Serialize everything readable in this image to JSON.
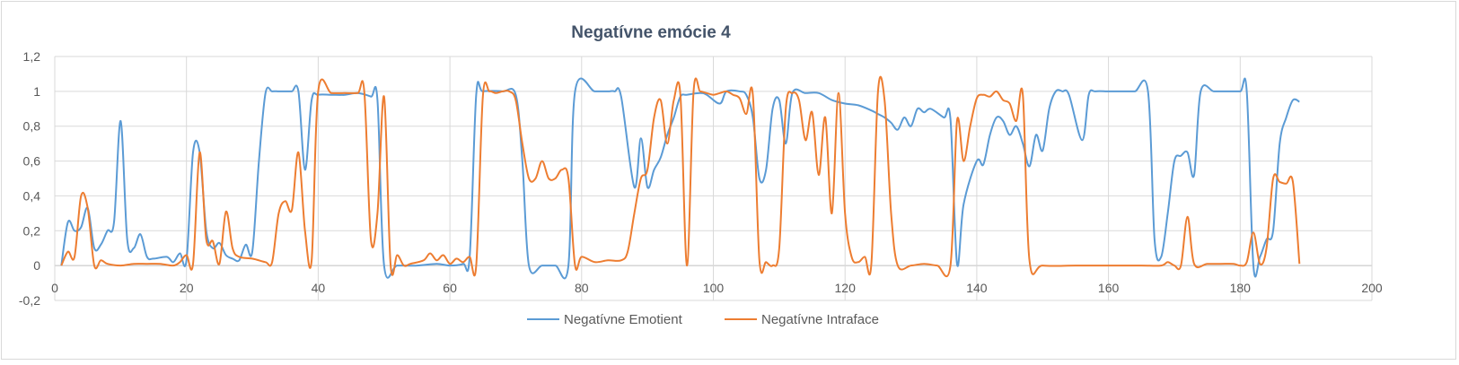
{
  "chart_data": {
    "type": "line",
    "title": "Negatívne emócie 4",
    "xlim": [
      0,
      200
    ],
    "ylim": [
      -0.2,
      1.2
    ],
    "x_ticks": [
      0,
      20,
      40,
      60,
      80,
      100,
      120,
      140,
      160,
      180,
      200
    ],
    "x_tick_labels": [
      "0",
      "20",
      "40",
      "60",
      "80",
      "100",
      "120",
      "140",
      "160",
      "180",
      "200"
    ],
    "y_ticks": [
      -0.2,
      0,
      0.2,
      0.4,
      0.6,
      0.8,
      1,
      1.2
    ],
    "y_tick_labels": [
      "-0,2",
      "0",
      "0,2",
      "0,4",
      "0,6",
      "0,8",
      "1",
      "1,2"
    ],
    "grid": true,
    "legend_position": "bottom",
    "series": [
      {
        "name": "Negatívne Emotient",
        "color": "#5b9bd5",
        "points": [
          [
            1,
            0
          ],
          [
            2,
            0.25
          ],
          [
            3,
            0.2
          ],
          [
            4,
            0.22
          ],
          [
            5,
            0.33
          ],
          [
            6,
            0.1
          ],
          [
            7,
            0.12
          ],
          [
            8,
            0.2
          ],
          [
            9,
            0.25
          ],
          [
            10,
            0.83
          ],
          [
            11,
            0.15
          ],
          [
            12,
            0.1
          ],
          [
            13,
            0.18
          ],
          [
            14,
            0.05
          ],
          [
            15,
            0.04
          ],
          [
            17,
            0.05
          ],
          [
            18,
            0.02
          ],
          [
            19,
            0.07
          ],
          [
            20,
            0.03
          ],
          [
            21,
            0.65
          ],
          [
            22,
            0.65
          ],
          [
            23,
            0.2
          ],
          [
            24,
            0.1
          ],
          [
            25,
            0.13
          ],
          [
            26,
            0.06
          ],
          [
            27,
            0.04
          ],
          [
            28,
            0.03
          ],
          [
            29,
            0.12
          ],
          [
            30,
            0.08
          ],
          [
            31,
            0.6
          ],
          [
            32,
            0.99
          ],
          [
            33,
            1
          ],
          [
            34,
            1
          ],
          [
            35,
            1
          ],
          [
            36,
            1
          ],
          [
            37,
            1
          ],
          [
            38,
            0.55
          ],
          [
            39,
            0.95
          ],
          [
            40,
            0.98
          ],
          [
            42,
            0.98
          ],
          [
            44,
            0.98
          ],
          [
            46,
            0.99
          ],
          [
            48,
            0.97
          ],
          [
            49,
            0.95
          ],
          [
            50,
            0
          ],
          [
            52,
            0
          ],
          [
            55,
            0
          ],
          [
            58,
            0.01
          ],
          [
            60,
            0
          ],
          [
            62,
            0.01
          ],
          [
            63,
            0.05
          ],
          [
            64,
            0.98
          ],
          [
            65,
            1
          ],
          [
            68,
            1
          ],
          [
            70,
            0.98
          ],
          [
            71,
            0.6
          ],
          [
            72,
            0
          ],
          [
            74,
            0
          ],
          [
            76,
            0
          ],
          [
            78,
            0
          ],
          [
            79,
            1
          ],
          [
            82,
            1
          ],
          [
            84,
            1
          ],
          [
            85,
            1
          ],
          [
            86,
            0.97
          ],
          [
            88,
            0.45
          ],
          [
            89,
            0.73
          ],
          [
            90,
            0.45
          ],
          [
            91,
            0.55
          ],
          [
            92,
            0.62
          ],
          [
            93,
            0.75
          ],
          [
            94,
            0.85
          ],
          [
            95,
            0.97
          ],
          [
            96,
            0.98
          ],
          [
            98,
            0.99
          ],
          [
            99,
            0.98
          ],
          [
            101,
            0.93
          ],
          [
            102,
            1
          ],
          [
            104,
            1
          ],
          [
            105,
            0.98
          ],
          [
            106,
            0.85
          ],
          [
            107,
            0.5
          ],
          [
            108,
            0.55
          ],
          [
            109,
            0.9
          ],
          [
            110,
            0.95
          ],
          [
            111,
            0.7
          ],
          [
            112,
            0.99
          ],
          [
            114,
            0.99
          ],
          [
            116,
            0.99
          ],
          [
            118,
            0.95
          ],
          [
            120,
            0.93
          ],
          [
            122,
            0.92
          ],
          [
            124,
            0.89
          ],
          [
            125,
            0.87
          ],
          [
            126,
            0.85
          ],
          [
            127,
            0.82
          ],
          [
            128,
            0.78
          ],
          [
            129,
            0.85
          ],
          [
            130,
            0.8
          ],
          [
            131,
            0.9
          ],
          [
            132,
            0.88
          ],
          [
            133,
            0.9
          ],
          [
            135,
            0.85
          ],
          [
            136,
            0.84
          ],
          [
            137,
            0.01
          ],
          [
            138,
            0.35
          ],
          [
            140,
            0.6
          ],
          [
            141,
            0.58
          ],
          [
            142,
            0.75
          ],
          [
            143,
            0.85
          ],
          [
            144,
            0.83
          ],
          [
            145,
            0.75
          ],
          [
            146,
            0.8
          ],
          [
            147,
            0.7
          ],
          [
            148,
            0.57
          ],
          [
            149,
            0.75
          ],
          [
            150,
            0.66
          ],
          [
            151,
            0.9
          ],
          [
            152,
            1
          ],
          [
            153,
            1
          ],
          [
            154,
            0.98
          ],
          [
            156,
            0.72
          ],
          [
            157,
            0.98
          ],
          [
            158,
            1
          ],
          [
            160,
            1
          ],
          [
            162,
            1
          ],
          [
            164,
            1
          ],
          [
            166,
            1
          ],
          [
            167,
            0.15
          ],
          [
            168,
            0.05
          ],
          [
            169,
            0.3
          ],
          [
            170,
            0.6
          ],
          [
            171,
            0.63
          ],
          [
            172,
            0.65
          ],
          [
            173,
            0.52
          ],
          [
            174,
            1
          ],
          [
            176,
            1
          ],
          [
            178,
            1
          ],
          [
            180,
            1
          ],
          [
            181,
            1
          ],
          [
            182,
            0
          ],
          [
            183,
            0.05
          ],
          [
            184,
            0.15
          ],
          [
            185,
            0.2
          ],
          [
            186,
            0.7
          ],
          [
            187,
            0.85
          ],
          [
            188,
            0.95
          ],
          [
            189,
            0.94
          ]
        ]
      },
      {
        "name": "Negatívne Intraface",
        "color": "#ed7d31",
        "points": [
          [
            1,
            0
          ],
          [
            2,
            0.08
          ],
          [
            3,
            0.05
          ],
          [
            4,
            0.4
          ],
          [
            5,
            0.33
          ],
          [
            6,
            0
          ],
          [
            7,
            0.03
          ],
          [
            8,
            0.01
          ],
          [
            10,
            0
          ],
          [
            12,
            0.01
          ],
          [
            14,
            0.01
          ],
          [
            16,
            0.01
          ],
          [
            18,
            0
          ],
          [
            19,
            0.02
          ],
          [
            20,
            0.06
          ],
          [
            21,
            0.01
          ],
          [
            22,
            0.65
          ],
          [
            23,
            0.15
          ],
          [
            24,
            0.14
          ],
          [
            25,
            0.01
          ],
          [
            26,
            0.31
          ],
          [
            27,
            0.1
          ],
          [
            28,
            0.05
          ],
          [
            30,
            0.04
          ],
          [
            32,
            0.02
          ],
          [
            33,
            0.02
          ],
          [
            34,
            0.3
          ],
          [
            35,
            0.37
          ],
          [
            36,
            0.32
          ],
          [
            37,
            0.65
          ],
          [
            38,
            0.2
          ],
          [
            39,
            0.03
          ],
          [
            40,
            1
          ],
          [
            42,
            0.99
          ],
          [
            44,
            0.99
          ],
          [
            46,
            0.99
          ],
          [
            47,
            1
          ],
          [
            48,
            0.15
          ],
          [
            49,
            0.3
          ],
          [
            50,
            0.97
          ],
          [
            51,
            0
          ],
          [
            52,
            0.06
          ],
          [
            53,
            0
          ],
          [
            54,
            0.01
          ],
          [
            56,
            0.03
          ],
          [
            57,
            0.07
          ],
          [
            58,
            0.03
          ],
          [
            59,
            0.06
          ],
          [
            60,
            0.01
          ],
          [
            61,
            0.04
          ],
          [
            62,
            0.02
          ],
          [
            63,
            0.05
          ],
          [
            64,
            0
          ],
          [
            65,
            0.97
          ],
          [
            66,
            1
          ],
          [
            67,
            0.99
          ],
          [
            68,
            1
          ],
          [
            69,
            1
          ],
          [
            70,
            0.95
          ],
          [
            71,
            0.7
          ],
          [
            72,
            0.5
          ],
          [
            73,
            0.5
          ],
          [
            74,
            0.6
          ],
          [
            75,
            0.5
          ],
          [
            76,
            0.5
          ],
          [
            77,
            0.55
          ],
          [
            78,
            0.5
          ],
          [
            79,
            0
          ],
          [
            80,
            0.05
          ],
          [
            82,
            0.02
          ],
          [
            84,
            0.03
          ],
          [
            86,
            0.03
          ],
          [
            87,
            0.08
          ],
          [
            88,
            0.3
          ],
          [
            89,
            0.5
          ],
          [
            90,
            0.55
          ],
          [
            91,
            0.85
          ],
          [
            92,
            0.95
          ],
          [
            93,
            0.7
          ],
          [
            94,
            0.95
          ],
          [
            95,
            0.98
          ],
          [
            96,
            0
          ],
          [
            97,
            1
          ],
          [
            98,
            1
          ],
          [
            99,
            0.99
          ],
          [
            100,
            0.98
          ],
          [
            101,
            0.99
          ],
          [
            102,
            1
          ],
          [
            103,
            0.98
          ],
          [
            104,
            0.96
          ],
          [
            105,
            0.87
          ],
          [
            106,
            0.98
          ],
          [
            107,
            0.03
          ],
          [
            108,
            0.02
          ],
          [
            109,
            0
          ],
          [
            110,
            0.1
          ],
          [
            111,
            0.9
          ],
          [
            112,
            0.99
          ],
          [
            113,
            0.95
          ],
          [
            114,
            0.72
          ],
          [
            115,
            0.88
          ],
          [
            116,
            0.52
          ],
          [
            117,
            0.85
          ],
          [
            118,
            0.3
          ],
          [
            119,
            0.99
          ],
          [
            120,
            0.3
          ],
          [
            121,
            0.05
          ],
          [
            122,
            0.02
          ],
          [
            123,
            0.05
          ],
          [
            124,
            0.01
          ],
          [
            125,
            1
          ],
          [
            126,
            0.95
          ],
          [
            127,
            0.3
          ],
          [
            128,
            0
          ],
          [
            130,
            0
          ],
          [
            132,
            0.01
          ],
          [
            134,
            0
          ],
          [
            136,
            0
          ],
          [
            137,
            0.83
          ],
          [
            138,
            0.6
          ],
          [
            139,
            0.8
          ],
          [
            140,
            0.96
          ],
          [
            141,
            0.98
          ],
          [
            142,
            0.97
          ],
          [
            143,
            1
          ],
          [
            144,
            0.95
          ],
          [
            145,
            0.93
          ],
          [
            146,
            0.83
          ],
          [
            147,
            0.98
          ],
          [
            148,
            0.03
          ],
          [
            150,
            0
          ],
          [
            155,
            0
          ],
          [
            160,
            0
          ],
          [
            165,
            0
          ],
          [
            168,
            0
          ],
          [
            169,
            0.02
          ],
          [
            170,
            0
          ],
          [
            171,
            0
          ],
          [
            172,
            0.28
          ],
          [
            173,
            0.01
          ],
          [
            175,
            0.01
          ],
          [
            177,
            0.01
          ],
          [
            179,
            0.01
          ],
          [
            180,
            0
          ],
          [
            181,
            0.02
          ],
          [
            182,
            0.19
          ],
          [
            183,
            0.01
          ],
          [
            184,
            0.1
          ],
          [
            185,
            0.5
          ],
          [
            186,
            0.48
          ],
          [
            187,
            0.47
          ],
          [
            188,
            0.48
          ],
          [
            189,
            0.01
          ]
        ]
      }
    ]
  }
}
